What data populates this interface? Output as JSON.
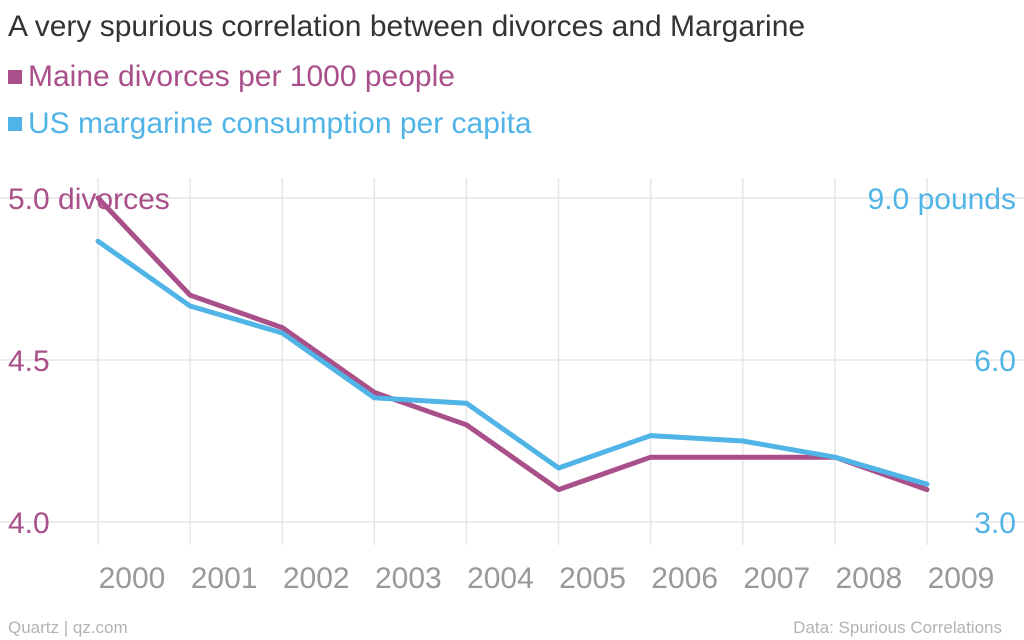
{
  "chart_data": {
    "type": "line",
    "title": "A very spurious correlation between divorces and Margarine",
    "categories": [
      "2000",
      "2001",
      "2002",
      "2003",
      "2004",
      "2005",
      "2006",
      "2007",
      "2008",
      "2009"
    ],
    "series": [
      {
        "name": "Maine divorces per 1000 people",
        "axis": "left",
        "color": "#a94f8a",
        "values": [
          5.0,
          4.7,
          4.6,
          4.4,
          4.3,
          4.1,
          4.2,
          4.2,
          4.2,
          4.1
        ]
      },
      {
        "name": "US margarine consumption per capita",
        "axis": "right",
        "color": "#51b4e7",
        "values": [
          8.2,
          7.0,
          6.5,
          5.3,
          5.2,
          4.0,
          4.6,
          4.5,
          4.2,
          3.7
        ]
      }
    ],
    "y_left": {
      "ylim": [
        4.0,
        5.0
      ],
      "ticks": [
        5.0,
        4.5,
        4.0
      ],
      "tick_labels": [
        "5.0 divorces",
        "4.5",
        "4.0"
      ]
    },
    "y_right": {
      "ylim": [
        3.0,
        9.0
      ],
      "ticks": [
        9.0,
        6.0,
        3.0
      ],
      "tick_labels": [
        "9.0 pounds",
        "6.0",
        "3.0"
      ]
    },
    "grid": true,
    "legend": "top-left"
  },
  "footer": {
    "source_left": "Quartz | qz.com",
    "source_right": "Data: Spurious Correlations"
  },
  "colors": {
    "title": "#333333",
    "grid": "#e6e6e6",
    "tick_x": "#999999",
    "footer": "#b3b3b3"
  }
}
